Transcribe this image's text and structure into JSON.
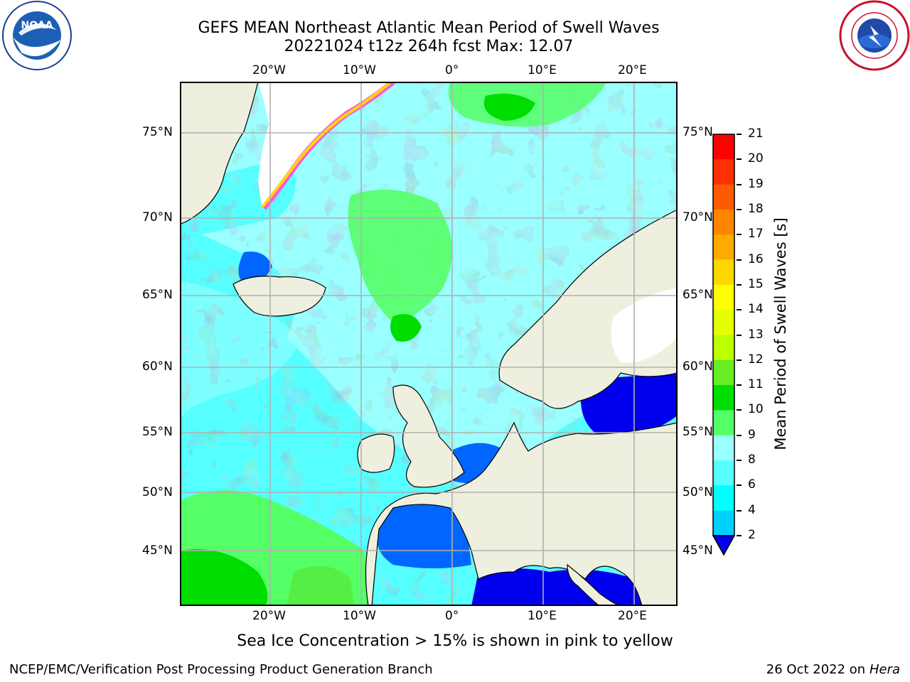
{
  "header": {
    "title_line1": "GEFS MEAN Northeast Atlantic Mean Period of Swell Waves",
    "title_line2": "20221024 t12z 264h fcst   Max: 12.07"
  },
  "logos": {
    "left": {
      "name": "noaa-logo",
      "text": "NOAA",
      "ring_text": "NATIONAL OCEANIC AND ATMOSPHERIC ADMINISTRATION · U.S. DEPARTMENT OF COMMERCE"
    },
    "right": {
      "name": "nws-logo",
      "ring_text": "NATIONAL WEATHER SERVICE"
    }
  },
  "map": {
    "top_lon_labels": [
      "20°W",
      "10°W",
      "0°",
      "10°E",
      "20°E"
    ],
    "bottom_lon_labels": [
      "20°W",
      "10°W",
      "0°",
      "10°E",
      "20°E"
    ],
    "left_lat_labels": [
      "75°N",
      "70°N",
      "65°N",
      "60°N",
      "55°N",
      "50°N",
      "45°N"
    ],
    "right_lat_labels": [
      "75°N",
      "70°N",
      "65°N",
      "60°N",
      "55°N",
      "50°N",
      "45°N"
    ],
    "colors": {
      "ocean_base": "#99ffff",
      "land": "#efefdf",
      "grid": "#b0b0b0",
      "coast": "#000000"
    }
  },
  "colorbar": {
    "label": "Mean Period of Swell Waves [s]",
    "ticks": [
      "21",
      "20",
      "19",
      "18",
      "17",
      "16",
      "15",
      "14",
      "13",
      "12",
      "11",
      "10",
      "9",
      "8",
      "6",
      "4",
      "2"
    ],
    "colors_top_to_bottom": [
      "#ff0000",
      "#ff2f00",
      "#ff5a00",
      "#ff8500",
      "#ffaa00",
      "#ffd700",
      "#ffff00",
      "#e6ff00",
      "#bbff00",
      "#66ee22",
      "#00dd00",
      "#55ff66",
      "#99ffff",
      "#55ffff",
      "#00ffff",
      "#00d0ff",
      "#0066ff"
    ],
    "extend_color": "#0000ee"
  },
  "caption": "Sea Ice Concentration > 15% is shown in pink to yellow",
  "footer": {
    "left": "NCEP/EMC/Verification Post Processing Product Generation Branch",
    "right_prefix": "26 Oct 2022 on ",
    "right_host": "Hera"
  }
}
